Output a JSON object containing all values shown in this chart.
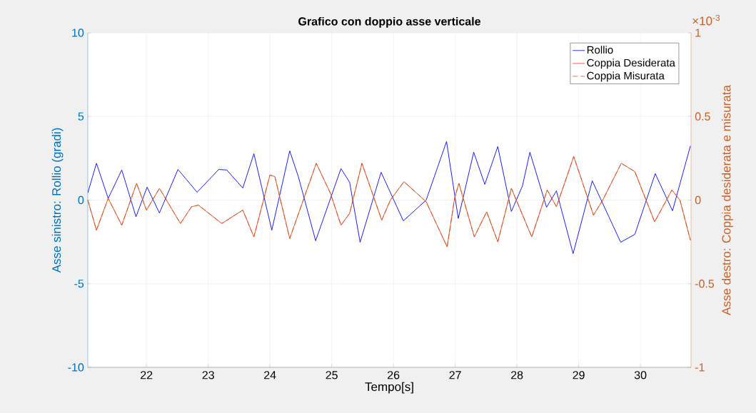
{
  "chart_data": {
    "type": "line",
    "title": "Grafico con doppio asse verticale",
    "xlabel": "Tempo[s]",
    "ylabel": "Asse sinistro: Rollio (gradi)",
    "y2label": "Asse destro: Coppia desiderata e misurata",
    "xlim": [
      21.05,
      30.82
    ],
    "xticks": [
      22,
      23,
      24,
      25,
      26,
      27,
      28,
      29,
      30
    ],
    "ylim": [
      -10,
      10
    ],
    "yticks": [
      -10,
      -5,
      0,
      5,
      10
    ],
    "y2lim": [
      -1,
      1
    ],
    "y2ticks": [
      -1,
      -0.5,
      0,
      0.5,
      1
    ],
    "grid": true,
    "legend": "top right",
    "annotations": [
      "×10$^{-3}$"
    ],
    "series": [
      {
        "name": "Rollio",
        "color": "#0000ff",
        "line_style": "solid",
        "x": [
          21.05,
          21.19,
          21.38,
          21.6,
          21.83,
          22.01,
          22.21,
          22.51,
          22.82,
          23.17,
          23.3,
          23.56,
          23.74,
          24.03,
          24.32,
          24.46,
          24.74,
          25.15,
          25.29,
          25.46,
          25.8,
          26.16,
          26.53,
          26.86,
          27.05,
          27.3,
          27.48,
          27.69,
          27.91,
          28.09,
          28.21,
          28.48,
          28.64,
          28.91,
          29.22,
          29.68,
          29.91,
          30.24,
          30.52,
          30.81
        ],
        "values": [
          0.43,
          2.2,
          0.1,
          1.8,
          -1.0,
          0.77,
          -0.77,
          1.83,
          0.47,
          1.83,
          1.8,
          0.72,
          2.77,
          -1.8,
          2.94,
          1.4,
          -2.43,
          1.88,
          1.07,
          -2.52,
          1.66,
          -1.24,
          0,
          3.5,
          -1.1,
          2.86,
          0.94,
          3.2,
          -0.68,
          0.85,
          2.86,
          -0.43,
          0.55,
          -3.2,
          1.15,
          -2.52,
          -2.05,
          1.58,
          -0.64,
          3.24
        ]
      },
      {
        "name": "Coppia Desiderata",
        "color": "#e8431a",
        "line_style": "solid",
        "axis": "y2",
        "x": [
          21.05,
          21.19,
          21.38,
          21.6,
          21.84,
          22,
          22.21,
          22.55,
          22.73,
          22.84,
          23.22,
          23.56,
          23.74,
          24.0,
          24.08,
          24.32,
          24.75,
          24.98,
          25.15,
          25.29,
          25.49,
          25.81,
          25.95,
          26.17,
          26.53,
          26.87,
          26.99,
          27.06,
          27.31,
          27.51,
          27.69,
          27.91,
          28.24,
          28.49,
          28.64,
          28.92,
          29.24,
          29.39,
          29.69,
          29.91,
          30.23,
          30.51,
          30.64,
          30.81
        ],
        "values": [
          0,
          -0.18,
          0.01,
          -0.15,
          0.1,
          -0.06,
          0.07,
          -0.14,
          -0.04,
          -0.03,
          -0.14,
          -0.06,
          -0.22,
          0.15,
          0.14,
          -0.23,
          0.22,
          0.04,
          -0.15,
          -0.08,
          0.22,
          -0.12,
          0,
          0.11,
          -0.01,
          -0.28,
          0.01,
          0.1,
          -0.22,
          -0.07,
          -0.25,
          0.07,
          -0.22,
          0.06,
          -0.04,
          0.26,
          -0.09,
          0,
          0.22,
          0.17,
          -0.13,
          0.06,
          0,
          -0.24
        ]
      },
      {
        "name": "Coppia Misurata",
        "color": "#d95319",
        "line_style": "dashed",
        "axis": "y2",
        "x": [
          21.05,
          21.19,
          21.38,
          21.6,
          21.84,
          22,
          22.21,
          22.55,
          22.73,
          22.84,
          23.22,
          23.56,
          23.74,
          24.0,
          24.08,
          24.32,
          24.75,
          24.98,
          25.15,
          25.29,
          25.49,
          25.81,
          25.95,
          26.17,
          26.53,
          26.87,
          26.99,
          27.06,
          27.31,
          27.51,
          27.69,
          27.91,
          28.24,
          28.49,
          28.64,
          28.92,
          29.24,
          29.39,
          29.69,
          29.91,
          30.23,
          30.51,
          30.64,
          30.81
        ],
        "values": [
          0,
          -0.18,
          0.01,
          -0.15,
          0.1,
          -0.06,
          0.07,
          -0.14,
          -0.04,
          -0.03,
          -0.14,
          -0.06,
          -0.22,
          0.15,
          0.14,
          -0.23,
          0.22,
          0.04,
          -0.15,
          -0.08,
          0.22,
          -0.12,
          0,
          0.11,
          -0.01,
          -0.28,
          0.01,
          0.1,
          -0.22,
          -0.07,
          -0.25,
          0.07,
          -0.22,
          0.06,
          -0.04,
          0.26,
          -0.09,
          0,
          0.22,
          0.17,
          -0.13,
          0.06,
          0,
          -0.24
        ]
      }
    ]
  }
}
